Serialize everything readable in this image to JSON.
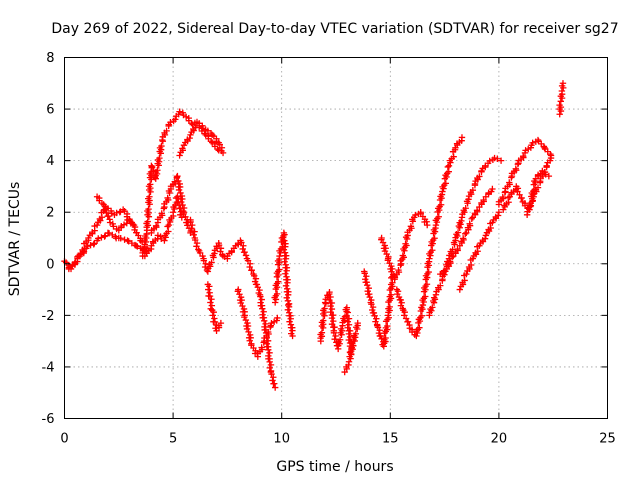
{
  "chart_data": {
    "type": "scatter",
    "title": "Day 269 of 2022, Sidereal Day-to-day VTEC variation (SDTVAR) for receiver sg27",
    "xlabel": "GPS time / hours",
    "ylabel": "SDTVAR / TECUs",
    "xlim": [
      0,
      25
    ],
    "ylim": [
      -6,
      8
    ],
    "xticks": [
      "0",
      "5",
      "10",
      "15",
      "20",
      "25"
    ],
    "yticks": [
      "-6",
      "-4",
      "-2",
      "0",
      "2",
      "4",
      "6",
      "8"
    ],
    "grid": true,
    "marker": "+",
    "color": "#ff0000",
    "series": [
      {
        "x": [
          0.0,
          0.3,
          0.7,
          1.1,
          1.5,
          1.9,
          2.3,
          2.7,
          3.1,
          3.5,
          3.8
        ],
        "y": [
          0.1,
          -0.2,
          0.3,
          1.0,
          1.5,
          2.2,
          1.9,
          2.1,
          1.6,
          0.9,
          0.6
        ]
      },
      {
        "x": [
          0.2,
          0.6,
          1.0,
          1.5,
          2.0,
          2.5,
          2.9,
          3.3,
          3.7
        ],
        "y": [
          -0.2,
          0.2,
          0.6,
          0.9,
          1.2,
          1.0,
          0.9,
          0.7,
          0.5
        ]
      },
      {
        "x": [
          1.5,
          1.8,
          2.1,
          2.5,
          2.9,
          3.2
        ],
        "y": [
          2.6,
          2.3,
          1.6,
          1.3,
          1.7,
          1.5
        ]
      },
      {
        "x": [
          3.6,
          3.8,
          4.0,
          4.2,
          4.5,
          4.8,
          5.1,
          5.3
        ],
        "y": [
          0.3,
          1.3,
          3.8,
          3.3,
          4.8,
          5.4,
          5.6,
          5.9
        ]
      },
      {
        "x": [
          5.3,
          5.6,
          5.9,
          6.2,
          6.5,
          6.8,
          7.1
        ],
        "y": [
          5.9,
          5.7,
          5.4,
          5.3,
          5.0,
          4.7,
          4.4
        ]
      },
      {
        "x": [
          5.3,
          5.5,
          5.8,
          6.1,
          6.5,
          6.8,
          7.1,
          7.3
        ],
        "y": [
          4.2,
          4.6,
          5.0,
          5.5,
          5.2,
          5.0,
          4.7,
          4.3
        ]
      },
      {
        "x": [
          4.0,
          4.3,
          4.6,
          4.9,
          5.2,
          5.5,
          5.8
        ],
        "y": [
          1.2,
          1.6,
          2.2,
          2.9,
          3.4,
          2.0,
          1.2
        ]
      },
      {
        "x": [
          3.7,
          4.0,
          4.3,
          4.6,
          4.8,
          5.0,
          5.2,
          5.4
        ],
        "y": [
          0.3,
          0.7,
          1.1,
          0.9,
          1.5,
          2.0,
          2.6,
          1.8
        ]
      },
      {
        "x": [
          5.8,
          6.0,
          6.2,
          6.4,
          6.6,
          6.9,
          7.1,
          7.3,
          7.5
        ],
        "y": [
          1.7,
          1.0,
          0.5,
          0.2,
          -0.3,
          0.4,
          0.8,
          0.3,
          0.2
        ]
      },
      {
        "x": [
          6.6,
          6.8,
          7.0,
          7.2
        ],
        "y": [
          -0.8,
          -1.8,
          -2.6,
          -2.3
        ]
      },
      {
        "x": [
          7.5,
          7.8,
          8.1,
          8.4,
          8.7,
          9.0,
          9.3,
          9.5,
          9.7
        ],
        "y": [
          0.3,
          0.6,
          0.9,
          0.2,
          -0.4,
          -1.2,
          -2.8,
          -4.2,
          -4.8
        ]
      },
      {
        "x": [
          8.0,
          8.3,
          8.6,
          8.9,
          9.2,
          9.5,
          9.8
        ],
        "y": [
          -1.0,
          -2.0,
          -3.1,
          -3.6,
          -3.0,
          -2.4,
          -2.1
        ]
      },
      {
        "x": [
          9.7,
          9.9,
          10.1,
          10.3,
          10.5
        ],
        "y": [
          -1.5,
          0.3,
          1.2,
          -1.6,
          -2.8
        ]
      },
      {
        "x": [
          11.8,
          12.0,
          12.2,
          12.4,
          12.6,
          12.8,
          13.0,
          13.2,
          13.5
        ],
        "y": [
          -3.0,
          -1.5,
          -1.1,
          -2.6,
          -3.3,
          -2.4,
          -1.7,
          -3.5,
          -2.3
        ]
      },
      {
        "x": [
          12.9,
          13.1,
          13.3
        ],
        "y": [
          -4.2,
          -3.8,
          -3.0
        ]
      },
      {
        "x": [
          13.8,
          14.1,
          14.4,
          14.7,
          14.9,
          15.1
        ],
        "y": [
          -0.3,
          -1.5,
          -2.4,
          -3.2,
          -2.0,
          -0.5
        ]
      },
      {
        "x": [
          14.6,
          14.9,
          15.2,
          15.5,
          15.8,
          16.1,
          16.4,
          16.7
        ],
        "y": [
          1.0,
          0.2,
          -0.6,
          0.0,
          1.1,
          1.8,
          2.0,
          1.5
        ]
      },
      {
        "x": [
          15.3,
          15.6,
          15.9,
          16.2,
          16.5,
          16.8,
          17.1,
          17.4,
          17.7,
          18.0,
          18.3
        ],
        "y": [
          -1.0,
          -1.8,
          -2.5,
          -2.8,
          -1.6,
          0.2,
          1.5,
          2.8,
          3.8,
          4.5,
          4.9
        ]
      },
      {
        "x": [
          16.8,
          17.1,
          17.4,
          17.7,
          18.0,
          18.3,
          18.6,
          18.9,
          19.2,
          19.5,
          19.8,
          20.1
        ],
        "y": [
          -2.0,
          -1.2,
          -0.6,
          0.2,
          0.9,
          1.8,
          2.5,
          3.1,
          3.6,
          3.9,
          4.1,
          4.0
        ]
      },
      {
        "x": [
          17.3,
          17.6,
          17.9,
          18.2,
          18.5,
          18.8,
          19.1,
          19.4,
          19.7
        ],
        "y": [
          -0.4,
          -0.2,
          0.3,
          0.7,
          1.2,
          1.8,
          2.2,
          2.6,
          2.9
        ]
      },
      {
        "x": [
          18.2,
          18.5,
          18.8,
          19.1,
          19.4,
          19.7,
          20.0
        ],
        "y": [
          -1.0,
          -0.4,
          0.2,
          0.7,
          1.1,
          1.6,
          2.0
        ]
      },
      {
        "x": [
          20.0,
          20.3,
          20.6,
          20.9,
          21.2,
          21.5,
          21.8,
          22.1,
          22.4
        ],
        "y": [
          2.3,
          2.8,
          3.4,
          3.9,
          4.3,
          4.6,
          4.8,
          4.5,
          4.2
        ]
      },
      {
        "x": [
          20.2,
          20.5,
          20.8,
          21.1,
          21.4,
          21.7,
          22.0,
          22.3
        ],
        "y": [
          2.1,
          2.6,
          3.0,
          2.4,
          2.1,
          3.3,
          3.6,
          3.4
        ]
      },
      {
        "x": [
          21.3,
          21.6,
          21.9,
          22.2,
          22.4
        ],
        "y": [
          1.9,
          2.6,
          3.2,
          3.8,
          4.1
        ]
      },
      {
        "x": [
          22.8,
          22.85,
          22.9,
          22.95
        ],
        "y": [
          5.8,
          6.3,
          6.7,
          7.0
        ]
      }
    ]
  }
}
